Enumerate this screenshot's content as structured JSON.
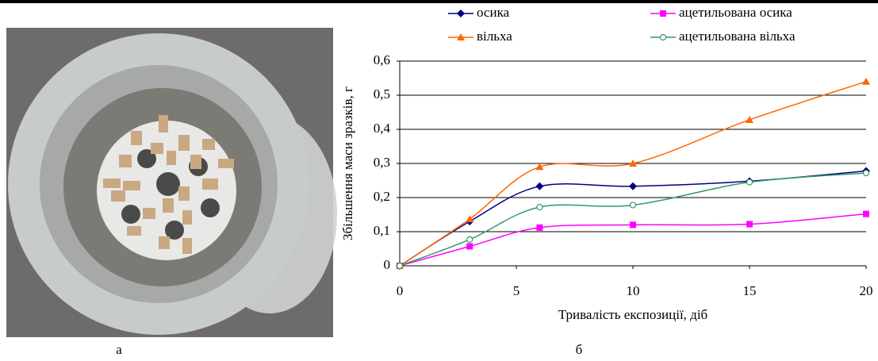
{
  "chart_data": {
    "type": "line",
    "x_label": "Тривалість експозиції, діб",
    "y_label": "Збільшення маси зразків, г",
    "x": [
      0,
      3,
      6,
      10,
      15,
      20
    ],
    "series": [
      {
        "name": "осика",
        "color": "#000080",
        "marker": "diamond",
        "values": [
          0,
          0.13,
          0.233,
          0.233,
          0.248,
          0.278
        ]
      },
      {
        "name": "ацетильована осика",
        "color": "#ff00ff",
        "marker": "square",
        "values": [
          0,
          0.057,
          0.112,
          0.12,
          0.122,
          0.152
        ]
      },
      {
        "name": "вільха",
        "color": "#ff6600",
        "marker": "triangle",
        "values": [
          0,
          0.137,
          0.29,
          0.3,
          0.428,
          0.54
        ]
      },
      {
        "name": "ацетильована вільха",
        "color": "#339966",
        "marker": "circle",
        "values": [
          0,
          0.077,
          0.172,
          0.178,
          0.245,
          0.272
        ]
      }
    ],
    "xlim": [
      0,
      20
    ],
    "xticks": [
      0,
      5,
      10,
      15,
      20
    ],
    "ylim": [
      0,
      0.6
    ],
    "yticks": [
      0,
      {
        "value": 0.1,
        "label": "0,1"
      },
      {
        "value": 0.2,
        "label": "0,2"
      },
      {
        "value": 0.3,
        "label": "0,3"
      },
      {
        "value": 0.4,
        "label": "0,4"
      },
      {
        "value": 0.5,
        "label": "0,5"
      },
      {
        "value": 0.6,
        "label": "0,6"
      }
    ],
    "grid": true,
    "smooth": true
  },
  "panel_labels": [
    "а",
    "б"
  ]
}
